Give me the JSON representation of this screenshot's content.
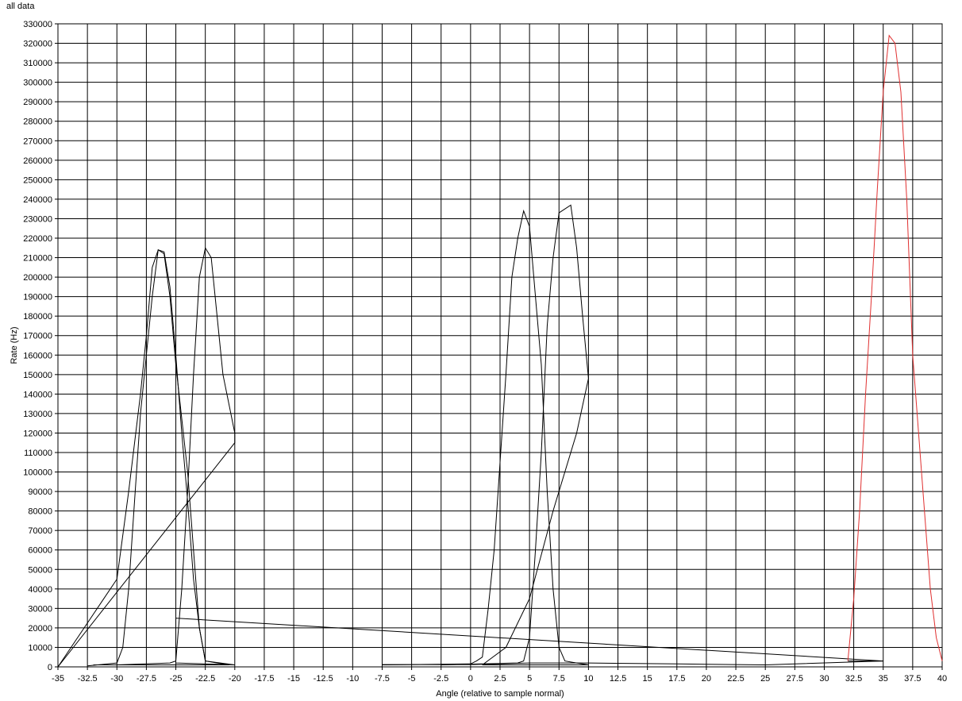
{
  "chart_data": {
    "type": "line",
    "title": "all data",
    "xlabel": "Angle (relative to sample normal)",
    "ylabel": "Rate (Hz)",
    "xlim": [
      -35,
      40
    ],
    "ylim": [
      0,
      330000
    ],
    "x_ticks": [
      "-35",
      "-32.5",
      "-30",
      "-27.5",
      "-25",
      "-22.5",
      "-20",
      "-17.5",
      "-15",
      "-12.5",
      "-10",
      "-7.5",
      "-5",
      "-2.5",
      "0",
      "2.5",
      "5",
      "7.5",
      "10",
      "12.5",
      "15",
      "17.5",
      "20",
      "22.5",
      "25",
      "27.5",
      "30",
      "32.5",
      "35",
      "37.5",
      "40"
    ],
    "y_ticks": [
      "0",
      "10000",
      "20000",
      "30000",
      "40000",
      "50000",
      "60000",
      "70000",
      "80000",
      "90000",
      "100000",
      "110000",
      "120000",
      "130000",
      "140000",
      "150000",
      "160000",
      "170000",
      "180000",
      "190000",
      "200000",
      "210000",
      "220000",
      "230000",
      "240000",
      "250000",
      "260000",
      "270000",
      "280000",
      "290000",
      "300000",
      "310000",
      "320000",
      "330000"
    ],
    "grid": true,
    "series": [
      {
        "color": "#000000",
        "points": [
          [
            -35,
            0
          ],
          [
            -30,
            45000
          ],
          [
            -29,
            90000
          ],
          [
            -28,
            140000
          ],
          [
            -27.5,
            170000
          ],
          [
            -27,
            205000
          ],
          [
            -26.5,
            214000
          ],
          [
            -26,
            213000
          ],
          [
            -25.5,
            195000
          ],
          [
            -25,
            160000
          ],
          [
            -24.5,
            120000
          ],
          [
            -24,
            85000
          ],
          [
            -23.5,
            45000
          ],
          [
            -23,
            20000
          ],
          [
            -22.5,
            3000
          ],
          [
            -21.5,
            2000
          ],
          [
            -20.5,
            1000
          ],
          [
            -32,
            1000
          ]
        ]
      },
      {
        "color": "#000000",
        "points": [
          [
            -32.5,
            500
          ],
          [
            -30,
            2000
          ],
          [
            -29.5,
            10000
          ],
          [
            -29,
            40000
          ],
          [
            -28.5,
            85000
          ],
          [
            -28,
            130000
          ],
          [
            -27,
            190000
          ],
          [
            -26.5,
            214000
          ],
          [
            -26,
            212000
          ],
          [
            -25.5,
            190000
          ],
          [
            -25,
            155000
          ],
          [
            -24,
            100000
          ],
          [
            -23.5,
            60000
          ],
          [
            -23,
            20000
          ],
          [
            -22.5,
            3000
          ],
          [
            -20,
            1000
          ],
          [
            -25,
            2000
          ],
          [
            -25,
            25000
          ],
          [
            35,
            3000
          ],
          [
            32,
            3000
          ]
        ]
      },
      {
        "color": "#000000",
        "points": [
          [
            -30,
            1000
          ],
          [
            -25.5,
            2000
          ],
          [
            -25,
            3000
          ],
          [
            -24.5,
            40000
          ],
          [
            -24,
            90000
          ],
          [
            -23.5,
            150000
          ],
          [
            -23,
            200000
          ],
          [
            -22.5,
            215000
          ],
          [
            -22,
            210000
          ],
          [
            -21.5,
            180000
          ],
          [
            -21,
            150000
          ],
          [
            -20,
            120000
          ],
          [
            -20,
            115000
          ],
          [
            -35,
            0
          ]
        ]
      },
      {
        "color": "#000000",
        "points": [
          [
            -7.5,
            1000
          ],
          [
            0,
            1500
          ],
          [
            0.5,
            3000
          ],
          [
            1,
            5000
          ],
          [
            1.5,
            30000
          ],
          [
            2,
            60000
          ],
          [
            2.5,
            105000
          ],
          [
            3,
            150000
          ],
          [
            3.5,
            200000
          ],
          [
            4,
            220000
          ],
          [
            4.5,
            234000
          ],
          [
            5,
            226000
          ],
          [
            5.5,
            190000
          ],
          [
            6,
            155000
          ],
          [
            6.5,
            90000
          ],
          [
            7,
            40000
          ],
          [
            7.5,
            10000
          ],
          [
            8,
            3000
          ],
          [
            9,
            2000
          ],
          [
            10,
            1000
          ],
          [
            1,
            1000
          ]
        ]
      },
      {
        "color": "#000000",
        "points": [
          [
            -2.5,
            1000
          ],
          [
            4,
            2000
          ],
          [
            4.5,
            3000
          ],
          [
            5,
            15000
          ],
          [
            5.5,
            60000
          ],
          [
            6,
            110000
          ],
          [
            6.5,
            175000
          ],
          [
            7,
            210000
          ],
          [
            7.5,
            233000
          ],
          [
            8.5,
            237000
          ],
          [
            9,
            215000
          ],
          [
            9.5,
            180000
          ],
          [
            10,
            148000
          ],
          [
            9,
            120000
          ],
          [
            7,
            80000
          ],
          [
            5,
            35000
          ],
          [
            3,
            10000
          ],
          [
            1,
            1000
          ]
        ]
      },
      {
        "color": "#000000",
        "points": [
          [
            -7.5,
            1200
          ],
          [
            0,
            1200
          ],
          [
            5,
            2000
          ],
          [
            10,
            2000
          ],
          [
            17.5,
            1500
          ],
          [
            25,
            1000
          ],
          [
            35,
            3000
          ]
        ]
      },
      {
        "color": "#e03030",
        "points": [
          [
            32,
            3000
          ],
          [
            32.5,
            35000
          ],
          [
            33,
            80000
          ],
          [
            33.5,
            140000
          ],
          [
            34,
            190000
          ],
          [
            34.5,
            245000
          ],
          [
            35,
            295000
          ],
          [
            35.5,
            324000
          ],
          [
            36,
            320000
          ],
          [
            36.5,
            295000
          ],
          [
            37,
            240000
          ],
          [
            37.5,
            160000
          ],
          [
            38,
            120000
          ],
          [
            38.5,
            80000
          ],
          [
            39,
            40000
          ],
          [
            39.5,
            15000
          ],
          [
            40,
            3000
          ]
        ]
      }
    ]
  }
}
